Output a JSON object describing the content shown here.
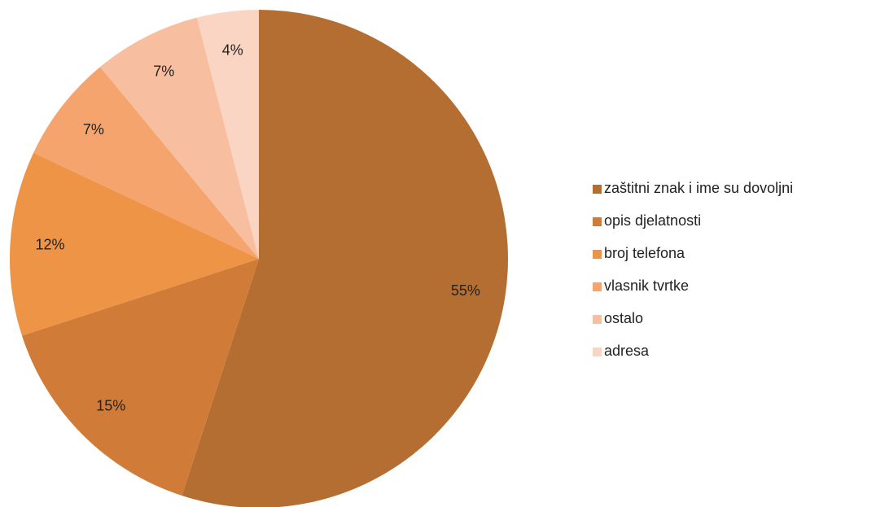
{
  "chart_data": {
    "type": "pie",
    "categories": [
      "zaštitni znak i ime su dovoljni",
      "opis djelatnosti",
      "broj telefona",
      "vlasnik tvrtke",
      "ostalo",
      "adresa"
    ],
    "values": [
      55,
      15,
      12,
      7,
      7,
      4
    ],
    "value_labels": [
      "55%",
      "15%",
      "12%",
      "7%",
      "7%",
      "4%"
    ],
    "colors": [
      "#b56e32",
      "#d07c38",
      "#ee9446",
      "#f4a46c",
      "#f7bf9f",
      "#fad5c4"
    ],
    "legend": "right"
  }
}
